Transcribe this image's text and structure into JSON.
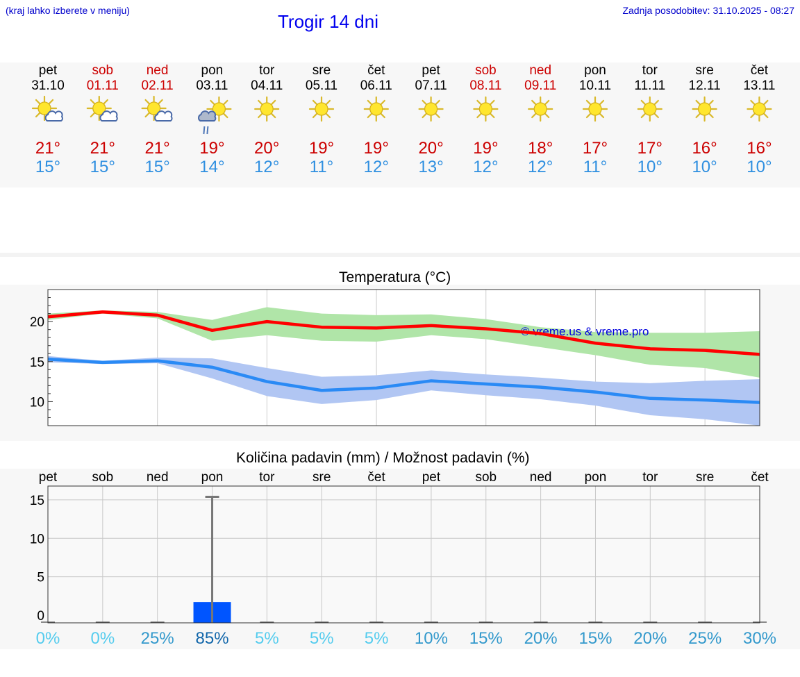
{
  "header": {
    "menu_hint": "(kraj lahko izberete v meniju)",
    "title": "Trogir 14 dni",
    "updated": "Zadnja posodobitev: 31.10.2025 - 08:27"
  },
  "days": [
    {
      "day": "pet",
      "date": "31.10",
      "weekend": false,
      "icon": "sun-cloud-icon",
      "tmax": "21°",
      "tmin": "15°"
    },
    {
      "day": "sob",
      "date": "01.11",
      "weekend": true,
      "icon": "sun-cloud-icon",
      "tmax": "21°",
      "tmin": "15°"
    },
    {
      "day": "ned",
      "date": "02.11",
      "weekend": true,
      "icon": "sun-cloud-icon",
      "tmax": "21°",
      "tmin": "15°"
    },
    {
      "day": "pon",
      "date": "03.11",
      "weekend": false,
      "icon": "sun-cloud-rain-icon",
      "tmax": "19°",
      "tmin": "14°"
    },
    {
      "day": "tor",
      "date": "04.11",
      "weekend": false,
      "icon": "sun-icon",
      "tmax": "20°",
      "tmin": "12°"
    },
    {
      "day": "sre",
      "date": "05.11",
      "weekend": false,
      "icon": "sun-icon",
      "tmax": "19°",
      "tmin": "11°"
    },
    {
      "day": "čet",
      "date": "06.11",
      "weekend": false,
      "icon": "sun-icon",
      "tmax": "19°",
      "tmin": "12°"
    },
    {
      "day": "pet",
      "date": "07.11",
      "weekend": false,
      "icon": "sun-icon",
      "tmax": "20°",
      "tmin": "13°"
    },
    {
      "day": "sob",
      "date": "08.11",
      "weekend": true,
      "icon": "sun-icon",
      "tmax": "19°",
      "tmin": "12°"
    },
    {
      "day": "ned",
      "date": "09.11",
      "weekend": true,
      "icon": "sun-icon",
      "tmax": "18°",
      "tmin": "12°"
    },
    {
      "day": "pon",
      "date": "10.11",
      "weekend": false,
      "icon": "sun-icon",
      "tmax": "17°",
      "tmin": "11°"
    },
    {
      "day": "tor",
      "date": "11.11",
      "weekend": false,
      "icon": "sun-icon",
      "tmax": "17°",
      "tmin": "10°"
    },
    {
      "day": "sre",
      "date": "12.11",
      "weekend": false,
      "icon": "sun-icon",
      "tmax": "16°",
      "tmin": "10°"
    },
    {
      "day": "čet",
      "date": "13.11",
      "weekend": false,
      "icon": "sun-icon",
      "tmax": "16°",
      "tmin": "10°"
    }
  ],
  "colors": {
    "weekend": "#cc0000",
    "tmax_text": "#cc0000",
    "tmin_text": "#2f8fe0",
    "max_line": "#ff0000",
    "max_band": "#b0e5a8",
    "min_line": "#2a8af5",
    "min_band": "#b1c6f3",
    "bar": "#0055ff",
    "errbar": "#777777"
  },
  "chart_data": [
    {
      "type": "line",
      "title": "Temperatura (°C)",
      "watermark": "© vreme.us & vreme.pro",
      "x": [
        0,
        1,
        2,
        3,
        4,
        5,
        6,
        7,
        8,
        9,
        10,
        11,
        12,
        13
      ],
      "ylim": [
        7,
        24
      ],
      "yticks": [
        "10",
        "15",
        "20"
      ],
      "series": [
        {
          "name": "max",
          "values": [
            20.6,
            21.2,
            20.8,
            18.9,
            20.0,
            19.3,
            19.2,
            19.5,
            19.1,
            18.5,
            17.3,
            16.6,
            16.4,
            15.9
          ],
          "band_low": [
            20.2,
            21.0,
            20.4,
            17.6,
            18.3,
            17.6,
            17.5,
            18.3,
            17.8,
            16.8,
            15.8,
            14.6,
            14.2,
            13.0
          ],
          "band_high": [
            21.0,
            21.4,
            21.2,
            20.2,
            21.8,
            21.0,
            20.8,
            20.9,
            20.3,
            19.3,
            18.7,
            18.6,
            18.6,
            18.8
          ]
        },
        {
          "name": "min",
          "values": [
            15.3,
            14.9,
            15.1,
            14.3,
            12.5,
            11.4,
            11.7,
            12.6,
            12.2,
            11.8,
            11.2,
            10.4,
            10.2,
            9.9
          ],
          "band_low": [
            14.9,
            14.7,
            14.8,
            12.9,
            10.7,
            9.7,
            10.2,
            11.4,
            10.8,
            10.3,
            9.5,
            8.3,
            7.8,
            7.0
          ],
          "band_high": [
            15.7,
            15.1,
            15.5,
            15.4,
            14.2,
            13.1,
            13.3,
            13.9,
            13.4,
            13.0,
            12.5,
            12.3,
            12.6,
            12.8
          ]
        }
      ]
    },
    {
      "type": "bar",
      "title": "Količina padavin (mm) / Možnost padavin (%)",
      "categories": [
        "pet",
        "sob",
        "ned",
        "pon",
        "tor",
        "sre",
        "čet",
        "pet",
        "sob",
        "ned",
        "pon",
        "tor",
        "sre",
        "čet"
      ],
      "values": [
        0,
        0,
        0,
        1.7,
        0,
        0,
        0,
        0,
        0,
        0,
        0,
        0,
        0,
        0
      ],
      "error_high": [
        0,
        0,
        0,
        15.4,
        0,
        0,
        0,
        0,
        0,
        0,
        0,
        0,
        0,
        0
      ],
      "probabilities": [
        "0%",
        "0%",
        "25%",
        "85%",
        "5%",
        "5%",
        "5%",
        "10%",
        "15%",
        "20%",
        "15%",
        "20%",
        "25%",
        "30%"
      ],
      "prob_colors": [
        "#55ccee",
        "#55ccee",
        "#3399cc",
        "#1166aa",
        "#55ccee",
        "#55ccee",
        "#55ccee",
        "#3399cc",
        "#3399cc",
        "#3399cc",
        "#3399cc",
        "#3399cc",
        "#3399cc",
        "#3399cc"
      ],
      "ylim": [
        -1,
        16.8
      ],
      "yticks": [
        "0",
        "5",
        "10",
        "15"
      ]
    }
  ]
}
